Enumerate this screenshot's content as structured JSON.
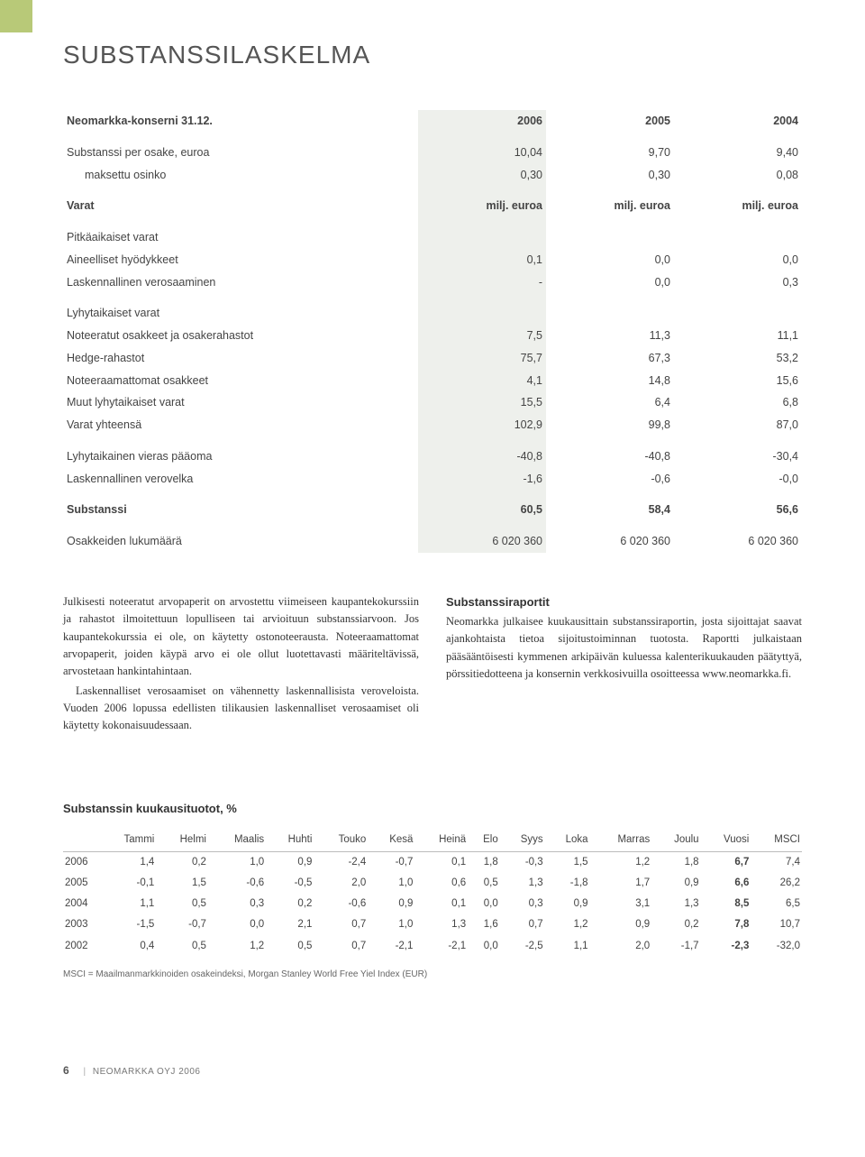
{
  "title": "SUBSTANSSILASKELMA",
  "colors": {
    "tab": "#b8c978",
    "shade": "#eef0ec",
    "text": "#333333",
    "heading": "#555555"
  },
  "nav": {
    "caption": "Neomarkka-konserni 31.12.",
    "years": [
      "2006",
      "2005",
      "2004"
    ],
    "per_share": {
      "label": "Substanssi per osake, euroa",
      "values": [
        "10,04",
        "9,70",
        "9,40"
      ],
      "dividend_label": "maksettu osinko",
      "dividend_values": [
        "0,30",
        "0,30",
        "0,08"
      ]
    },
    "assets_heading": "Varat",
    "units": [
      "milj. euroa",
      "milj. euroa",
      "milj. euroa"
    ],
    "longterm_label": "Pitkäaikaiset varat",
    "rows_long": [
      {
        "label": "Aineelliset hyödykkeet",
        "v": [
          "0,1",
          "0,0",
          "0,0"
        ]
      },
      {
        "label": "Laskennallinen verosaaminen",
        "v": [
          "-",
          "0,0",
          "0,3"
        ]
      }
    ],
    "shortterm_label": "Lyhytaikaiset varat",
    "rows_short": [
      {
        "label": "Noteeratut osakkeet ja osakerahastot",
        "v": [
          "7,5",
          "11,3",
          "11,1"
        ]
      },
      {
        "label": "Hedge-rahastot",
        "v": [
          "75,7",
          "67,3",
          "53,2"
        ]
      },
      {
        "label": "Noteeraamattomat osakkeet",
        "v": [
          "4,1",
          "14,8",
          "15,6"
        ]
      },
      {
        "label": "Muut lyhytaikaiset varat",
        "v": [
          "15,5",
          "6,4",
          "6,8"
        ]
      }
    ],
    "total_assets": {
      "label": "Varat yhteensä",
      "v": [
        "102,9",
        "99,8",
        "87,0"
      ]
    },
    "liabilities": [
      {
        "label": "Lyhytaikainen vieras pääoma",
        "v": [
          "-40,8",
          "-40,8",
          "-30,4"
        ]
      },
      {
        "label": "Laskennallinen verovelka",
        "v": [
          "-1,6",
          "-0,6",
          "-0,0"
        ]
      }
    ],
    "nav_row": {
      "label": "Substanssi",
      "v": [
        "60,5",
        "58,4",
        "56,6"
      ]
    },
    "shares_row": {
      "label": "Osakkeiden lukumäärä",
      "v": [
        "6 020 360",
        "6 020 360",
        "6 020 360"
      ]
    }
  },
  "prose": {
    "left_p1": "Julkisesti noteeratut arvopaperit on arvostettu viimeiseen kaupantekokurssiin ja rahastot ilmoitettuun lopulliseen tai arvioituun substanssiarvoon. Jos kaupantekokurssia ei ole, on käytetty ostonoteerausta. Noteeraamattomat arvopaperit, joiden käypä arvo ei ole ollut luotettavasti määriteltävissä, arvostetaan hankintahintaan.",
    "left_p2": "Laskennalliset verosaamiset on vähennetty laskennallisista veroveloista. Vuoden 2006 lopussa edellisten tilikausien laskennalliset verosaamiset oli käytetty kokonaisuudessaan.",
    "right_h": "Substanssiraportit",
    "right_p1": "Neomarkka julkaisee kuukausittain substanssiraportin, josta sijoittajat saavat ajankohtaista tietoa sijoitustoiminnan tuotosta. Raportti julkaistaan pääsääntöisesti kymmenen arkipäivän kuluessa kalenterikuukauden päätyttyä, pörssitiedotteena ja konsernin verkkosivuilla osoitteessa www.neomarkka.fi."
  },
  "monthly": {
    "heading": "Substanssin kuukausituotot, %",
    "columns": [
      "Tammi",
      "Helmi",
      "Maalis",
      "Huhti",
      "Touko",
      "Kesä",
      "Heinä",
      "Elo",
      "Syys",
      "Loka",
      "Marras",
      "Joulu",
      "Vuosi",
      "MSCI"
    ],
    "rows": [
      {
        "year": "2006",
        "v": [
          "1,4",
          "0,2",
          "1,0",
          "0,9",
          "-2,4",
          "-0,7",
          "0,1",
          "1,8",
          "-0,3",
          "1,5",
          "1,2",
          "1,8",
          "6,7",
          "7,4"
        ]
      },
      {
        "year": "2005",
        "v": [
          "-0,1",
          "1,5",
          "-0,6",
          "-0,5",
          "2,0",
          "1,0",
          "0,6",
          "0,5",
          "1,3",
          "-1,8",
          "1,7",
          "0,9",
          "6,6",
          "26,2"
        ]
      },
      {
        "year": "2004",
        "v": [
          "1,1",
          "0,5",
          "0,3",
          "0,2",
          "-0,6",
          "0,9",
          "0,1",
          "0,0",
          "0,3",
          "0,9",
          "3,1",
          "1,3",
          "8,5",
          "6,5"
        ]
      },
      {
        "year": "2003",
        "v": [
          "-1,5",
          "-0,7",
          "0,0",
          "2,1",
          "0,7",
          "1,0",
          "1,3",
          "1,6",
          "0,7",
          "1,2",
          "0,9",
          "0,2",
          "7,8",
          "10,7"
        ]
      },
      {
        "year": "2002",
        "v": [
          "0,4",
          "0,5",
          "1,2",
          "0,5",
          "0,7",
          "-2,1",
          "-2,1",
          "0,0",
          "-2,5",
          "1,1",
          "2,0",
          "-1,7",
          "-2,3",
          "-32,0"
        ]
      }
    ],
    "footnote": "MSCI = Maailmanmarkkinoiden osakeindeksi, Morgan Stanley World Free Yiel Index (EUR)"
  },
  "footer": {
    "page": "6",
    "publication": "NEOMARKKA OYJ 2006"
  }
}
